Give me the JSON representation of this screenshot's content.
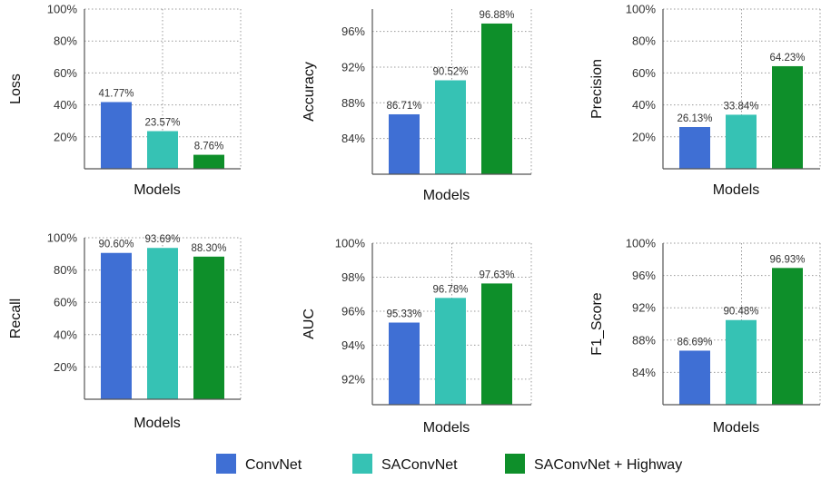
{
  "chart_data": [
    {
      "type": "bar",
      "categories": [
        "ConvNet",
        "SAConvNet",
        "SAConvNet + Highway"
      ],
      "values": [
        41.77,
        23.57,
        8.76
      ],
      "data_labels": [
        "41.77%",
        "23.57%",
        "8.76%"
      ],
      "ylabel": "Loss",
      "xlabel": "Models",
      "ylim": [
        0,
        100
      ],
      "yticks": [
        20,
        40,
        60,
        80,
        100
      ],
      "ytick_labels": [
        "20%",
        "40%",
        "60%",
        "80%",
        "100%"
      ],
      "grid": true
    },
    {
      "type": "bar",
      "categories": [
        "ConvNet",
        "SAConvNet",
        "SAConvNet + Highway"
      ],
      "values": [
        86.71,
        90.52,
        96.88
      ],
      "data_labels": [
        "86.71%",
        "90.52%",
        "96.88%"
      ],
      "ylabel": "Accuracy",
      "xlabel": "Models",
      "ylim": [
        80,
        98.5
      ],
      "yticks": [
        84,
        88,
        92,
        96
      ],
      "ytick_labels": [
        "84%",
        "88%",
        "92%",
        "96%"
      ],
      "grid": true
    },
    {
      "type": "bar",
      "categories": [
        "ConvNet",
        "SAConvNet",
        "SAConvNet + Highway"
      ],
      "values": [
        26.13,
        33.84,
        64.23
      ],
      "data_labels": [
        "26.13%",
        "33.84%",
        "64.23%"
      ],
      "ylabel": "Precision",
      "xlabel": "Models",
      "ylim": [
        0,
        100
      ],
      "yticks": [
        20,
        40,
        60,
        80,
        100
      ],
      "ytick_labels": [
        "20%",
        "40%",
        "60%",
        "80%",
        "100%"
      ],
      "grid": true
    },
    {
      "type": "bar",
      "categories": [
        "ConvNet",
        "SAConvNet",
        "SAConvNet + Highway"
      ],
      "values": [
        90.6,
        93.69,
        88.3
      ],
      "data_labels": [
        "90.60%",
        "93.69%",
        "88.30%"
      ],
      "ylabel": "Recall",
      "xlabel": "Models",
      "ylim": [
        0,
        100
      ],
      "yticks": [
        20,
        40,
        60,
        80,
        100
      ],
      "ytick_labels": [
        "20%",
        "40%",
        "60%",
        "80%",
        "100%"
      ],
      "grid": true
    },
    {
      "type": "bar",
      "categories": [
        "ConvNet",
        "SAConvNet",
        "SAConvNet + Highway"
      ],
      "values": [
        95.33,
        96.78,
        97.63
      ],
      "data_labels": [
        "95.33%",
        "96.78%",
        "97.63%"
      ],
      "ylabel": "AUC",
      "xlabel": "Models",
      "ylim": [
        90.5,
        100
      ],
      "yticks": [
        92,
        94,
        96,
        98,
        100
      ],
      "ytick_labels": [
        "92%",
        "94%",
        "96%",
        "98%",
        "100%"
      ],
      "grid": true
    },
    {
      "type": "bar",
      "categories": [
        "ConvNet",
        "SAConvNet",
        "SAConvNet + Highway"
      ],
      "values": [
        86.69,
        90.48,
        96.93
      ],
      "data_labels": [
        "86.69%",
        "90.48%",
        "96.93%"
      ],
      "ylabel": "F1_Score",
      "xlabel": "Models",
      "ylim": [
        80,
        100
      ],
      "yticks": [
        84,
        88,
        92,
        96,
        100
      ],
      "ytick_labels": [
        "84%",
        "88%",
        "92%",
        "96%",
        "100%"
      ],
      "grid": true
    }
  ],
  "legend": {
    "placement": "bottom",
    "items": [
      {
        "label": "ConvNet",
        "color": "#3f6fd4"
      },
      {
        "label": "SAConvNet",
        "color": "#36c2b4"
      },
      {
        "label": "SAConvNet + Highway",
        "color": "#0e8f2a"
      }
    ]
  }
}
